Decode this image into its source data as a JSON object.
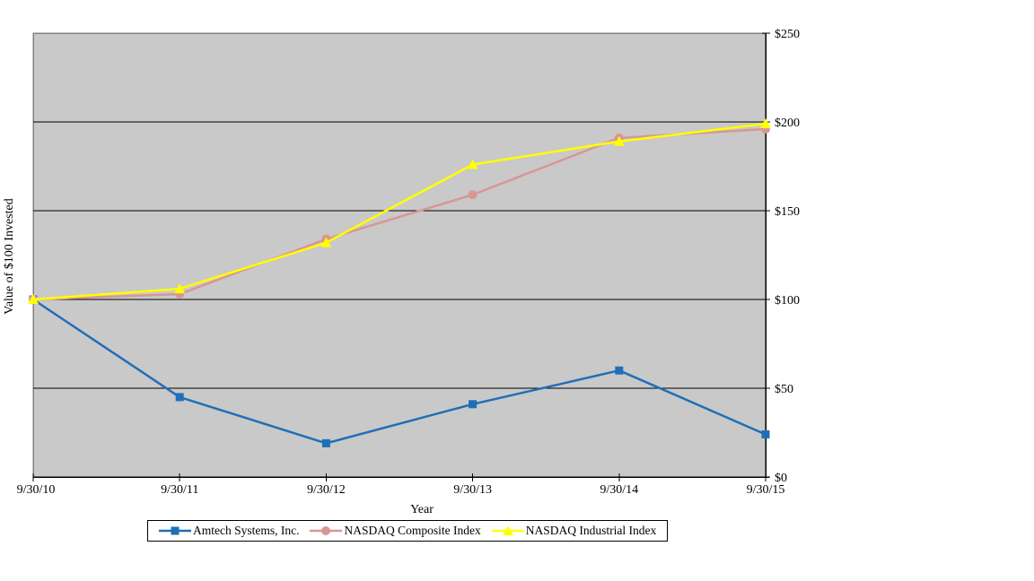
{
  "chart_data": {
    "type": "line",
    "title": "",
    "xlabel": "Year",
    "ylabel": "Value of $100 Invested",
    "categories": [
      "9/30/10",
      "9/30/11",
      "9/30/12",
      "9/30/13",
      "9/30/14",
      "9/30/15"
    ],
    "series": [
      {
        "name": "Amtech Systems, Inc.",
        "color": "#1F6FB8",
        "marker": "square",
        "values": [
          100,
          45,
          19,
          41,
          60,
          24
        ]
      },
      {
        "name": "NASDAQ Composite Index",
        "color": "#D99694",
        "marker": "circle",
        "values": [
          100,
          103,
          134,
          159,
          191,
          196
        ]
      },
      {
        "name": "NASDAQ Industrial Index",
        "color": "#FFFF00",
        "marker": "triangle",
        "values": [
          100,
          106,
          132,
          176,
          189,
          199
        ]
      }
    ],
    "y_ticks": [
      {
        "value": 0,
        "label": "$0"
      },
      {
        "value": 50,
        "label": "$50"
      },
      {
        "value": 100,
        "label": "$100"
      },
      {
        "value": 150,
        "label": "$150"
      },
      {
        "value": 200,
        "label": "$200"
      },
      {
        "value": 250,
        "label": "$250"
      }
    ],
    "ylim": [
      0,
      250
    ],
    "grid": "horizontal",
    "legend_position": "bottom",
    "colors": {
      "plot_background": "#C9C9C9",
      "plot_border": "#808080",
      "gridline": "#000000",
      "axis_line": "#000000",
      "text": "#000000",
      "page_background": "#FFFFFF"
    }
  }
}
